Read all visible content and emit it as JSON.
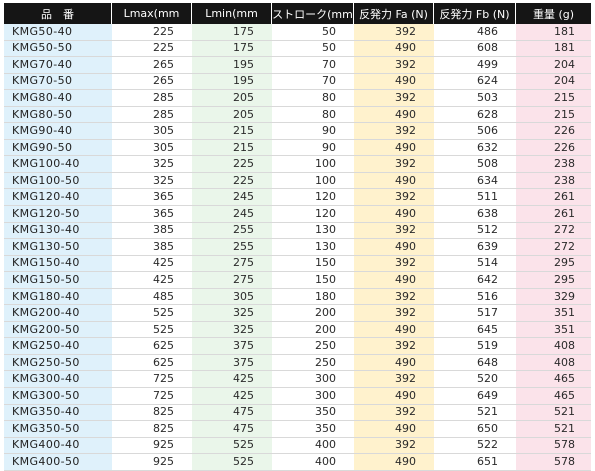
{
  "table": {
    "headers": [
      "品　番",
      "Lmax(mm",
      "Lmin(mm",
      "ストローク(mm",
      "反発力 Fa (N)",
      "反発力 Fb (N)",
      "重量 (g)"
    ],
    "rows": [
      [
        "KMG50-40",
        "225",
        "175",
        "50",
        "392",
        "486",
        "181"
      ],
      [
        "KMG50-50",
        "225",
        "175",
        "50",
        "490",
        "608",
        "181"
      ],
      [
        "KMG70-40",
        "265",
        "195",
        "70",
        "392",
        "499",
        "204"
      ],
      [
        "KMG70-50",
        "265",
        "195",
        "70",
        "490",
        "624",
        "204"
      ],
      [
        "KMG80-40",
        "285",
        "205",
        "80",
        "392",
        "503",
        "215"
      ],
      [
        "KMG80-50",
        "285",
        "205",
        "80",
        "490",
        "628",
        "215"
      ],
      [
        "KMG90-40",
        "305",
        "215",
        "90",
        "392",
        "506",
        "226"
      ],
      [
        "KMG90-50",
        "305",
        "215",
        "90",
        "490",
        "632",
        "226"
      ],
      [
        "KMG100-40",
        "325",
        "225",
        "100",
        "392",
        "508",
        "238"
      ],
      [
        "KMG100-50",
        "325",
        "225",
        "100",
        "490",
        "634",
        "238"
      ],
      [
        "KMG120-40",
        "365",
        "245",
        "120",
        "392",
        "511",
        "261"
      ],
      [
        "KMG120-50",
        "365",
        "245",
        "120",
        "490",
        "638",
        "261"
      ],
      [
        "KMG130-40",
        "385",
        "255",
        "130",
        "392",
        "512",
        "272"
      ],
      [
        "KMG130-50",
        "385",
        "255",
        "130",
        "490",
        "639",
        "272"
      ],
      [
        "KMG150-40",
        "425",
        "275",
        "150",
        "392",
        "514",
        "295"
      ],
      [
        "KMG150-50",
        "425",
        "275",
        "150",
        "490",
        "642",
        "295"
      ],
      [
        "KMG180-40",
        "485",
        "305",
        "180",
        "392",
        "516",
        "329"
      ],
      [
        "KMG200-40",
        "525",
        "325",
        "200",
        "392",
        "517",
        "351"
      ],
      [
        "KMG200-50",
        "525",
        "325",
        "200",
        "490",
        "645",
        "351"
      ],
      [
        "KMG250-40",
        "625",
        "375",
        "250",
        "392",
        "519",
        "408"
      ],
      [
        "KMG250-50",
        "625",
        "375",
        "250",
        "490",
        "648",
        "408"
      ],
      [
        "KMG300-40",
        "725",
        "425",
        "300",
        "392",
        "520",
        "465"
      ],
      [
        "KMG300-50",
        "725",
        "425",
        "300",
        "490",
        "649",
        "465"
      ],
      [
        "KMG350-40",
        "825",
        "475",
        "350",
        "392",
        "521",
        "521"
      ],
      [
        "KMG350-50",
        "825",
        "475",
        "350",
        "490",
        "650",
        "521"
      ],
      [
        "KMG400-40",
        "925",
        "525",
        "400",
        "392",
        "522",
        "578"
      ],
      [
        "KMG400-50",
        "925",
        "525",
        "400",
        "490",
        "651",
        "578"
      ]
    ],
    "colors": {
      "header_bg": "#151515",
      "part_col": "#dff1fb",
      "lmin_col": "#eaf6ea",
      "fa_col": "#fff2cd",
      "weight_col": "#fbe3ea"
    }
  }
}
